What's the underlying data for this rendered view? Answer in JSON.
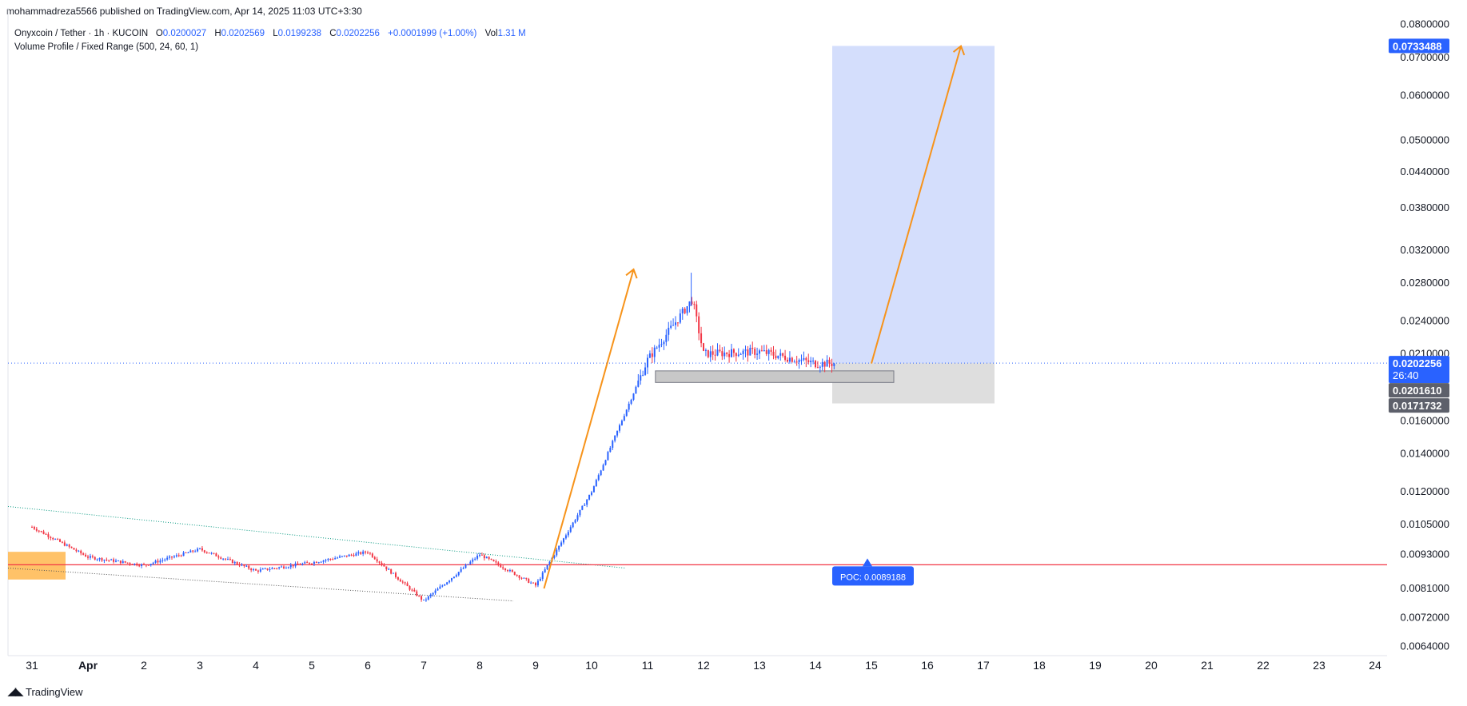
{
  "header": {
    "publish_line": "mohammadreza5566 published on TradingView.com, Apr 14, 2025 11:03 UTC+3:30"
  },
  "legend": {
    "symbol": "Onyxcoin / Tether · 1h · KUCOIN",
    "o_label": "O",
    "o_value": "0.0200027",
    "h_label": "H",
    "h_value": "0.0202569",
    "l_label": "L",
    "l_value": "0.0199238",
    "c_label": "C",
    "c_value": "0.0202256",
    "change": "+0.0001999 (+1.00%)",
    "vol_label": "Vol",
    "vol_value": "1.31 M",
    "indicator": "Volume Profile / Fixed Range (500, 24, 60, 1)"
  },
  "footer": {
    "brand": "TradingView"
  },
  "colors": {
    "up": "#089981",
    "down": "#f23645",
    "candle_up": "#2962ff",
    "poc_line": "#f23645",
    "target_zone": "#c5d3fb",
    "stop_zone": "#d6d6d6",
    "arrow": "#f7931a",
    "accent_blue": "#2962ff"
  },
  "chart_data": {
    "type": "candlestick",
    "title": "Onyxcoin / Tether · 1h · KUCOIN",
    "x_tick_labels": [
      "31",
      "Apr",
      "2",
      "3",
      "4",
      "5",
      "6",
      "7",
      "8",
      "9",
      "10",
      "11",
      "12",
      "13",
      "14",
      "15",
      "16",
      "17",
      "18",
      "19",
      "20",
      "21",
      "22",
      "23",
      "24"
    ],
    "y_tick_labels": [
      "0.0800000",
      "0.0700000",
      "0.0600000",
      "0.0500000",
      "0.0440000",
      "0.0380000",
      "0.0320000",
      "0.0280000",
      "0.0240000",
      "0.0210000",
      "0.0160000",
      "0.0140000",
      "0.0120000",
      "0.0105000",
      "0.0093000",
      "0.0081000",
      "0.0072000",
      "0.0064000"
    ],
    "y_scale": "log",
    "price_path": [
      {
        "date": "Mar 31",
        "price": 0.0104
      },
      {
        "date": "Apr 1",
        "price": 0.0092
      },
      {
        "date": "Apr 2",
        "price": 0.0089
      },
      {
        "date": "Apr 3",
        "price": 0.0095
      },
      {
        "date": "Apr 4",
        "price": 0.0087
      },
      {
        "date": "Apr 5",
        "price": 0.009
      },
      {
        "date": "Apr 6",
        "price": 0.0094
      },
      {
        "date": "Apr 7",
        "price": 0.0077
      },
      {
        "date": "Apr 8",
        "price": 0.0093
      },
      {
        "date": "Apr 9",
        "price": 0.0082
      },
      {
        "date": "Apr 10",
        "price": 0.012
      },
      {
        "date": "Apr 11",
        "price": 0.0205
      },
      {
        "date": "Apr 12",
        "price": 0.021
      },
      {
        "date": "Apr 13",
        "price": 0.0212
      },
      {
        "date": "Apr 14",
        "price": 0.0202
      }
    ],
    "swing_high": 0.0292,
    "current_price": "0.0202256",
    "countdown": "26:40",
    "vp_mid_price": "0.0201610",
    "stop_price": "0.0171732",
    "target_price": "0.0733488",
    "poc_label": "POC: 0.0089188",
    "poc_price": 0.0089188
  }
}
